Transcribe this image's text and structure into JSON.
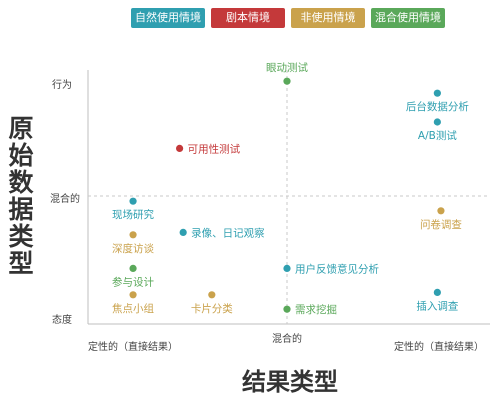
{
  "legend": [
    {
      "label": "自然使用情境",
      "color": "#2f9fb0"
    },
    {
      "label": "剧本情境",
      "color": "#c4393a"
    },
    {
      "label": "非使用情境",
      "color": "#caa24c"
    },
    {
      "label": "混合使用情境",
      "color": "#5aa85a"
    }
  ],
  "axis_titles": {
    "y": "原始数据类型",
    "x": "结果类型"
  },
  "ticks": {
    "y_top": "行为",
    "y_mid": "混合的",
    "y_bottom": "态度",
    "x_left": "定性的（直接结果）",
    "x_mid": "混合的",
    "x_right": "定性的（直接结果）"
  },
  "chart_data": {
    "type": "scatter",
    "xlabel": "结果类型",
    "ylabel": "原始数据类型",
    "xlim": [
      0,
      1
    ],
    "ylim": [
      0,
      1
    ],
    "grid": "dashed center crosshair",
    "points": [
      {
        "label": "眼动测试",
        "x": 0.5,
        "y": 0.97,
        "color": "#5aa85a",
        "label_pos": "above"
      },
      {
        "label": "后台数据分析",
        "x": 0.92,
        "y": 0.92,
        "color": "#2f9fb0",
        "label_pos": "below"
      },
      {
        "label": "A/B测试",
        "x": 0.92,
        "y": 0.8,
        "color": "#2f9fb0",
        "label_pos": "below"
      },
      {
        "label": "可用性测试",
        "x": 0.2,
        "y": 0.69,
        "color": "#c4393a",
        "label_pos": "right"
      },
      {
        "label": "现场研究",
        "x": 0.07,
        "y": 0.47,
        "color": "#2f9fb0",
        "label_pos": "below"
      },
      {
        "label": "问卷调查",
        "x": 0.93,
        "y": 0.43,
        "color": "#caa24c",
        "label_pos": "below"
      },
      {
        "label": "录像、日记观察",
        "x": 0.21,
        "y": 0.34,
        "color": "#2f9fb0",
        "label_pos": "right"
      },
      {
        "label": "深度访谈",
        "x": 0.07,
        "y": 0.33,
        "color": "#caa24c",
        "label_pos": "below"
      },
      {
        "label": "用户反馈意见分析",
        "x": 0.5,
        "y": 0.19,
        "color": "#2f9fb0",
        "label_pos": "right"
      },
      {
        "label": "参与设计",
        "x": 0.07,
        "y": 0.19,
        "color": "#5aa85a",
        "label_pos": "below"
      },
      {
        "label": "焦点小组",
        "x": 0.07,
        "y": 0.08,
        "color": "#caa24c",
        "label_pos": "below"
      },
      {
        "label": "卡片分类",
        "x": 0.29,
        "y": 0.08,
        "color": "#caa24c",
        "label_pos": "below"
      },
      {
        "label": "插入调查",
        "x": 0.92,
        "y": 0.09,
        "color": "#2f9fb0",
        "label_pos": "below"
      },
      {
        "label": "需求挖掘",
        "x": 0.5,
        "y": 0.02,
        "color": "#5aa85a",
        "label_pos": "right"
      }
    ]
  }
}
